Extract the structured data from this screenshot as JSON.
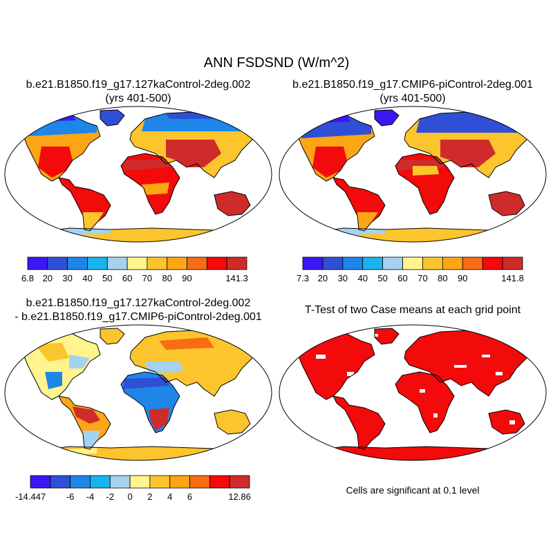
{
  "title": "ANN FSDSND (W/m^2)",
  "chart_data": [
    {
      "type": "heatmap",
      "title_line1": "b.e21.B1850.f19_g17.127kaControl-2deg.002",
      "title_line2": "(yrs 401-500)",
      "projection": "Robinson world map",
      "colorbar": {
        "labels": [
          "6.8",
          "20",
          "30",
          "40",
          "50",
          "60",
          "70",
          "80",
          "90",
          "141.3"
        ],
        "colors": [
          "#3a17f5",
          "#2f4fd6",
          "#1e86e8",
          "#1ab3ee",
          "#a5d2ee",
          "#fff48d",
          "#fdc52d",
          "#fca615",
          "#f86d13",
          "#f30a0a",
          "#cf2b2b"
        ]
      }
    },
    {
      "type": "heatmap",
      "title_line1": "b.e21.B1850.f19_g17.CMIP6-piControl-2deg.001",
      "title_line2": "(yrs 401-500)",
      "projection": "Robinson world map",
      "colorbar": {
        "labels": [
          "7.3",
          "20",
          "30",
          "40",
          "50",
          "60",
          "70",
          "80",
          "90",
          "141.8"
        ],
        "colors": [
          "#3a17f5",
          "#2f4fd6",
          "#1e86e8",
          "#1ab3ee",
          "#a5d2ee",
          "#fff48d",
          "#fdc52d",
          "#fca615",
          "#f86d13",
          "#f30a0a",
          "#cf2b2b"
        ]
      }
    },
    {
      "type": "heatmap",
      "title_line1": "b.e21.B1850.f19_g17.127kaControl-2deg.002",
      "title_line2": "- b.e21.B1850.f19_g17.CMIP6-piControl-2deg.001",
      "projection": "Robinson world map",
      "colorbar": {
        "labels": [
          "-14.447",
          "-6",
          "-4",
          "-2",
          "0",
          "2",
          "4",
          "6",
          "12.86"
        ],
        "label_slots": [
          0,
          2,
          3,
          4,
          5,
          6,
          7,
          8,
          10
        ],
        "colors": [
          "#3a17f5",
          "#2f4fd6",
          "#1e86e8",
          "#1ab3ee",
          "#a5d2ee",
          "#fff48d",
          "#fdc52d",
          "#fca615",
          "#f86d13",
          "#f30a0a",
          "#cf2b2b"
        ]
      }
    },
    {
      "type": "heatmap",
      "title_line1": "T-Test of two Case means at each grid point",
      "projection": "Robinson world map",
      "note": "Cells are significant at 0.1 level",
      "significant_color": "#f30a0a"
    }
  ]
}
